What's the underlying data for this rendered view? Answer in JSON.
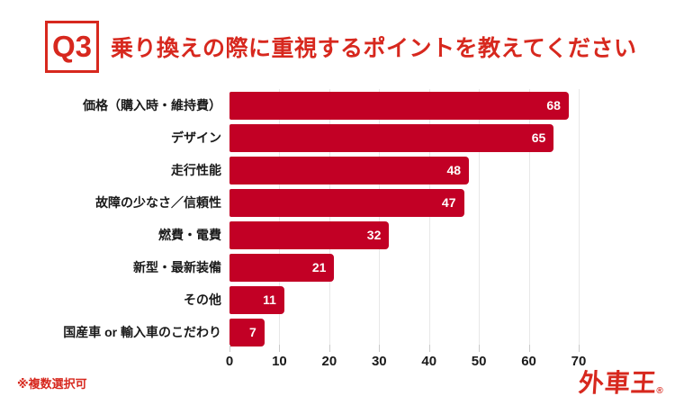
{
  "header": {
    "question_label": "Q3",
    "title": "乗り換えの際に重視するポイントを教えてください"
  },
  "chart_data": {
    "type": "bar",
    "orientation": "horizontal",
    "title": "乗り換えの際に重視するポイントを教えてください",
    "categories": [
      "価格（購入時・維持費）",
      "デザイン",
      "走行性能",
      "故障の少なさ／信頼性",
      "燃費・電費",
      "新型・最新装備",
      "その他",
      "国産車 or 輸入車のこだわり"
    ],
    "values": [
      68,
      65,
      48,
      47,
      32,
      21,
      11,
      7
    ],
    "xlim": [
      0,
      70
    ],
    "xticks": [
      0,
      10,
      20,
      30,
      40,
      50,
      60,
      70
    ],
    "grid": true,
    "value_labels": "inside-end",
    "legend": "none"
  },
  "footer": {
    "note": "※複数選択可",
    "logo_text": "外車王",
    "logo_mark": "®"
  },
  "colors": {
    "background": "#ffffff",
    "accent_red": "#d7281e",
    "bar_red": "#c20025",
    "gridline": "#e8e8e8",
    "tick": "#c9c9c9",
    "text_dark": "#1a1a1a",
    "value_label": "#ffffff"
  }
}
